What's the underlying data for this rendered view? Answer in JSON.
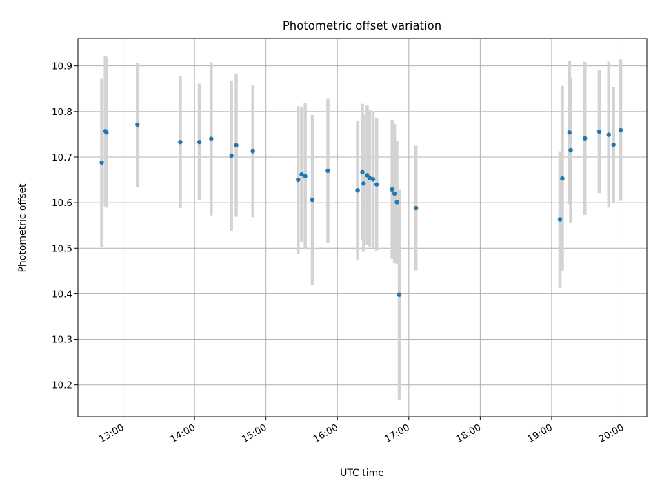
{
  "chart_data": {
    "type": "scatter",
    "title": "Photometric offset variation",
    "xlabel": "UTC time",
    "ylabel": "Photometric offset",
    "xlim": [
      "12:22",
      "20:20"
    ],
    "ylim": [
      10.13,
      10.96
    ],
    "xticks": [
      "13:00",
      "14:00",
      "15:00",
      "16:00",
      "17:00",
      "18:00",
      "19:00",
      "20:00"
    ],
    "yticks": [
      10.2,
      10.3,
      10.4,
      10.5,
      10.6,
      10.7,
      10.8,
      10.9
    ],
    "grid": true,
    "colors": {
      "point": "#1f77b4",
      "errorbar": "#d3d3d3",
      "grid": "#b0b0b0"
    },
    "points": [
      {
        "x": "12:42",
        "y": 10.688,
        "err": 0.185
      },
      {
        "x": "12:45",
        "y": 10.757,
        "err": 0.165
      },
      {
        "x": "12:46",
        "y": 10.754,
        "err": 0.165
      },
      {
        "x": "13:12",
        "y": 10.771,
        "err": 0.136
      },
      {
        "x": "13:48",
        "y": 10.733,
        "err": 0.145
      },
      {
        "x": "14:04",
        "y": 10.733,
        "err": 0.128
      },
      {
        "x": "14:14",
        "y": 10.74,
        "err": 0.168
      },
      {
        "x": "14:31",
        "y": 10.703,
        "err": 0.165
      },
      {
        "x": "14:35",
        "y": 10.726,
        "err": 0.157
      },
      {
        "x": "14:49",
        "y": 10.713,
        "err": 0.145
      },
      {
        "x": "15:27",
        "y": 10.65,
        "err": 0.162
      },
      {
        "x": "15:30",
        "y": 10.662,
        "err": 0.148
      },
      {
        "x": "15:33",
        "y": 10.658,
        "err": 0.16
      },
      {
        "x": "15:39",
        "y": 10.606,
        "err": 0.186
      },
      {
        "x": "15:52",
        "y": 10.67,
        "err": 0.159
      },
      {
        "x": "16:17",
        "y": 10.627,
        "err": 0.152
      },
      {
        "x": "16:21",
        "y": 10.667,
        "err": 0.15
      },
      {
        "x": "16:22",
        "y": 10.642,
        "err": 0.15
      },
      {
        "x": "16:25",
        "y": 10.66,
        "err": 0.153
      },
      {
        "x": "16:27",
        "y": 10.654,
        "err": 0.15
      },
      {
        "x": "16:30",
        "y": 10.651,
        "err": 0.15
      },
      {
        "x": "16:33",
        "y": 10.64,
        "err": 0.145
      },
      {
        "x": "16:46",
        "y": 10.629,
        "err": 0.153
      },
      {
        "x": "16:48",
        "y": 10.62,
        "err": 0.153
      },
      {
        "x": "16:50",
        "y": 10.601,
        "err": 0.135
      },
      {
        "x": "16:52",
        "y": 10.398,
        "err": 0.23
      },
      {
        "x": "17:06",
        "y": 10.588,
        "err": 0.137
      },
      {
        "x": "19:07",
        "y": 10.563,
        "err": 0.15
      },
      {
        "x": "19:09",
        "y": 10.653,
        "err": 0.203
      },
      {
        "x": "19:15",
        "y": 10.754,
        "err": 0.157
      },
      {
        "x": "19:16",
        "y": 10.715,
        "err": 0.16
      },
      {
        "x": "19:28",
        "y": 10.741,
        "err": 0.168
      },
      {
        "x": "19:40",
        "y": 10.756,
        "err": 0.135
      },
      {
        "x": "19:48",
        "y": 10.749,
        "err": 0.16
      },
      {
        "x": "19:52",
        "y": 10.727,
        "err": 0.127
      },
      {
        "x": "19:58",
        "y": 10.759,
        "err": 0.155
      }
    ]
  }
}
